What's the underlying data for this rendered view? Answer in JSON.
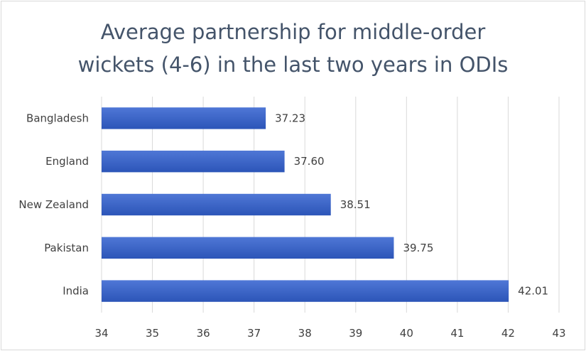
{
  "chart_data": {
    "type": "bar",
    "orientation": "horizontal",
    "title_lines": [
      "Average partnership for middle-order",
      "wickets (4-6) in the last two years in ODIs"
    ],
    "categories": [
      "Bangladesh",
      "England",
      "New Zealand",
      "Pakistan",
      "India"
    ],
    "values": [
      37.23,
      37.6,
      38.51,
      39.75,
      42.01
    ],
    "data_labels": [
      "37.23",
      "37.60",
      "38.51",
      "39.75",
      "42.01"
    ],
    "xlim": [
      34,
      43
    ],
    "x_ticks": [
      34,
      35,
      36,
      37,
      38,
      39,
      40,
      41,
      42,
      43
    ],
    "grid": true,
    "legend": "none",
    "colors": {
      "bar_top": "#4f77d6",
      "bar_bottom": "#2c55b8",
      "grid": "#d9d9d9",
      "title": "#44546a",
      "text": "#404040"
    }
  }
}
